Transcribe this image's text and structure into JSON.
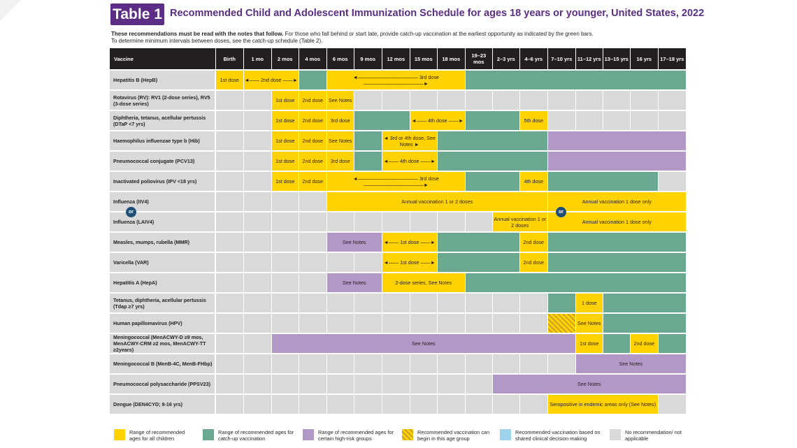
{
  "header": {
    "badge": "Table 1",
    "title": "Recommended Child and Adolescent Immunization Schedule for ages 18 years or younger, United States, 2022"
  },
  "intro": {
    "bold": "These recommendations must be read with the notes that follow.",
    "line1": " For those who fall behind or start late, provide catch-up vaccination at the earliest opportunity as indicated by the green bars.",
    "line2": "To determine minimum intervals between doses, see the catch-up schedule (Table 2)."
  },
  "columns": [
    "Vaccine",
    "Birth",
    "1 mo",
    "2 mos",
    "4 mos",
    "6 mos",
    "9 mos",
    "12 mos",
    "15 mos",
    "18 mos",
    "19–23 mos",
    "2–3 yrs",
    "4–6 yrs",
    "7–10 yrs",
    "11–12 yrs",
    "13–15 yrs",
    "16 yrs",
    "17–18 yrs"
  ],
  "rows": [
    {
      "label": "Hepatitis B (HepB)",
      "bars": [
        {
          "c": "y",
          "s": 1,
          "e": 1,
          "t": "1st dose"
        },
        {
          "c": "y",
          "s": 2,
          "e": 3,
          "t": "◄—— 2nd dose ——►"
        },
        {
          "c": "g",
          "s": 4,
          "e": 4,
          "t": ""
        },
        {
          "c": "y",
          "s": 5,
          "e": 9,
          "t": "◄———————————— 3rd dose ————————————►"
        },
        {
          "c": "g",
          "s": 10,
          "e": 17,
          "t": ""
        }
      ]
    },
    {
      "label": "Rotavirus (RV): RV1 (2-dose series), RV5 (3-dose series)",
      "bars": [
        {
          "c": "y",
          "s": 3,
          "e": 3,
          "t": "1st dose"
        },
        {
          "c": "y",
          "s": 4,
          "e": 4,
          "t": "2nd dose"
        },
        {
          "c": "y",
          "s": 5,
          "e": 5,
          "t": "See Notes"
        }
      ]
    },
    {
      "label": "Diphtheria, tetanus, acellular pertussis (DTaP <7 yrs)",
      "bars": [
        {
          "c": "y",
          "s": 3,
          "e": 3,
          "t": "1st dose"
        },
        {
          "c": "y",
          "s": 4,
          "e": 4,
          "t": "2nd dose"
        },
        {
          "c": "y",
          "s": 5,
          "e": 5,
          "t": "3rd dose"
        },
        {
          "c": "g",
          "s": 6,
          "e": 7,
          "t": ""
        },
        {
          "c": "y",
          "s": 8,
          "e": 9,
          "t": "◄—— 4th dose ——►"
        },
        {
          "c": "g",
          "s": 10,
          "e": 11,
          "t": ""
        },
        {
          "c": "y",
          "s": 12,
          "e": 12,
          "t": "5th dose"
        }
      ]
    },
    {
      "label": "Haemophilus influenzae type b (Hib)",
      "bars": [
        {
          "c": "y",
          "s": 3,
          "e": 3,
          "t": "1st dose"
        },
        {
          "c": "y",
          "s": 4,
          "e": 4,
          "t": "2nd dose"
        },
        {
          "c": "y",
          "s": 5,
          "e": 5,
          "t": "See Notes"
        },
        {
          "c": "g",
          "s": 6,
          "e": 6,
          "t": ""
        },
        {
          "c": "y",
          "s": 7,
          "e": 8,
          "t": "◄ 3rd or 4th dose, See Notes ►"
        },
        {
          "c": "g",
          "s": 9,
          "e": 12,
          "t": ""
        },
        {
          "c": "p",
          "s": 13,
          "e": 17,
          "t": ""
        }
      ]
    },
    {
      "label": "Pneumococcal conjugate (PCV13)",
      "bars": [
        {
          "c": "y",
          "s": 3,
          "e": 3,
          "t": "1st dose"
        },
        {
          "c": "y",
          "s": 4,
          "e": 4,
          "t": "2nd dose"
        },
        {
          "c": "y",
          "s": 5,
          "e": 5,
          "t": "3rd dose"
        },
        {
          "c": "g",
          "s": 6,
          "e": 6,
          "t": ""
        },
        {
          "c": "y",
          "s": 7,
          "e": 8,
          "t": "◄—— 4th dose ——►"
        },
        {
          "c": "g",
          "s": 9,
          "e": 12,
          "t": ""
        },
        {
          "c": "p",
          "s": 13,
          "e": 17,
          "t": ""
        }
      ]
    },
    {
      "label": "Inactivated poliovirus (IPV <18 yrs)",
      "bars": [
        {
          "c": "y",
          "s": 3,
          "e": 3,
          "t": "1st dose"
        },
        {
          "c": "y",
          "s": 4,
          "e": 4,
          "t": "2nd dose"
        },
        {
          "c": "y",
          "s": 5,
          "e": 9,
          "t": "◄———————————— 3rd dose ————————————►"
        },
        {
          "c": "g",
          "s": 10,
          "e": 11,
          "t": ""
        },
        {
          "c": "y",
          "s": 12,
          "e": 12,
          "t": "4th dose"
        },
        {
          "c": "g",
          "s": 13,
          "e": 16,
          "t": ""
        }
      ]
    },
    {
      "label": "Influenza (IIV4)",
      "bars": [
        {
          "c": "y",
          "s": 5,
          "e": 12,
          "t": "Annual vaccination 1 or 2 doses"
        },
        {
          "c": "y",
          "s": 13,
          "e": 17,
          "t": "Annual vaccination 1 dose only"
        }
      ]
    },
    {
      "label": "Influenza (LAIV4)",
      "bars": [
        {
          "c": "y",
          "s": 11,
          "e": 12,
          "t": "Annual vaccination 1 or 2 doses"
        },
        {
          "c": "y",
          "s": 13,
          "e": 17,
          "t": "Annual vaccination 1 dose only"
        }
      ]
    },
    {
      "label": "Measles, mumps, rubella (MMR)",
      "bars": [
        {
          "c": "p",
          "s": 5,
          "e": 6,
          "t": "See Notes"
        },
        {
          "c": "y",
          "s": 7,
          "e": 8,
          "t": "◄—— 1st dose ——►"
        },
        {
          "c": "g",
          "s": 9,
          "e": 11,
          "t": ""
        },
        {
          "c": "y",
          "s": 12,
          "e": 12,
          "t": "2nd dose"
        },
        {
          "c": "g",
          "s": 13,
          "e": 17,
          "t": ""
        }
      ]
    },
    {
      "label": "Varicella (VAR)",
      "bars": [
        {
          "c": "y",
          "s": 7,
          "e": 8,
          "t": "◄—— 1st dose ——►"
        },
        {
          "c": "g",
          "s": 9,
          "e": 11,
          "t": ""
        },
        {
          "c": "y",
          "s": 12,
          "e": 12,
          "t": "2nd dose"
        },
        {
          "c": "g",
          "s": 13,
          "e": 17,
          "t": ""
        }
      ]
    },
    {
      "label": "Hepatitis A (HepA)",
      "bars": [
        {
          "c": "p",
          "s": 5,
          "e": 6,
          "t": "See Notes"
        },
        {
          "c": "y",
          "s": 7,
          "e": 9,
          "t": "2-dose series, See Notes"
        },
        {
          "c": "g",
          "s": 10,
          "e": 17,
          "t": ""
        }
      ]
    },
    {
      "label": "Tetanus, diphtheria, acellular pertussis (Tdap ≥7 yrs)",
      "bars": [
        {
          "c": "g",
          "s": 13,
          "e": 13,
          "t": ""
        },
        {
          "c": "y",
          "s": 14,
          "e": 14,
          "t": "1 dose"
        },
        {
          "c": "g",
          "s": 15,
          "e": 17,
          "t": ""
        }
      ]
    },
    {
      "label": "Human papillomavirus (HPV)",
      "bars": [
        {
          "c": "hatch",
          "s": 13,
          "e": 13,
          "t": ""
        },
        {
          "c": "y",
          "s": 14,
          "e": 14,
          "t": "See Notes"
        },
        {
          "c": "g",
          "s": 15,
          "e": 17,
          "t": ""
        }
      ]
    },
    {
      "label": "Meningococcal (MenACWY-D ≥9 mos, MenACWY-CRM ≥2 mos, MenACWY-TT ≥2years)",
      "bars": [
        {
          "c": "p",
          "s": 3,
          "e": 13,
          "t": "See Notes"
        },
        {
          "c": "y",
          "s": 14,
          "e": 14,
          "t": "1st dose"
        },
        {
          "c": "g",
          "s": 15,
          "e": 15,
          "t": ""
        },
        {
          "c": "y",
          "s": 16,
          "e": 16,
          "t": "2nd dose"
        },
        {
          "c": "g",
          "s": 17,
          "e": 17,
          "t": ""
        }
      ]
    },
    {
      "label": "Meningococcal B (MenB-4C, MenB-FHbp)",
      "bars": [
        {
          "c": "p",
          "s": 14,
          "e": 17,
          "t": "See Notes"
        }
      ]
    },
    {
      "label": "Pneumococcal polysaccharide (PPSV23)",
      "bars": [
        {
          "c": "p",
          "s": 11,
          "e": 17,
          "t": "See Notes"
        }
      ]
    },
    {
      "label": "Dengue (DEN4CYD; 9-16 yrs)",
      "bars": [
        {
          "c": "y",
          "s": 13,
          "e": 16,
          "t": "Seropositive in endemic areas only (See Notes)"
        }
      ]
    }
  ],
  "or_label": "or",
  "legend": [
    {
      "color": "#ffd200",
      "text": "Range of recommended ages for all children"
    },
    {
      "color": "#6aa98f",
      "text": "Range of recommended ages for catch-up vaccination"
    },
    {
      "color": "#b298c7",
      "text": "Range of recommended ages for certain high-risk groups"
    },
    {
      "color": "hatch",
      "text": "Recommended vaccination can begin in this age group"
    },
    {
      "color": "#9ed3ee",
      "text": "Recommended vaccination based on shared clinical decision-making"
    },
    {
      "color": "#d9d9d9",
      "text": "No recommendation/ not applicable"
    }
  ]
}
